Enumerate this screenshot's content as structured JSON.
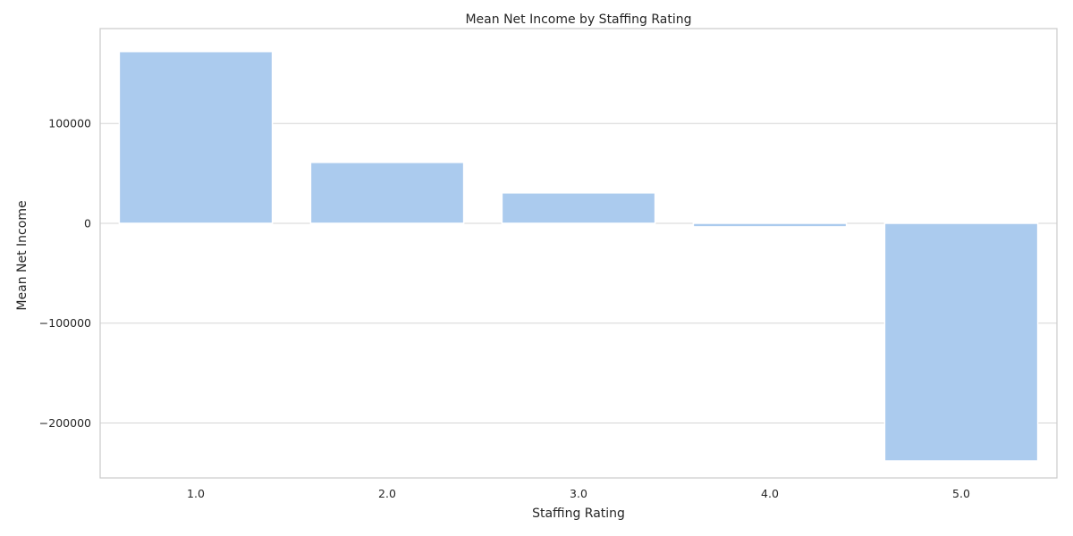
{
  "chart_data": {
    "type": "bar",
    "title": "Mean Net Income by Staffing Rating",
    "xlabel": "Staffing Rating",
    "ylabel": "Mean Net Income",
    "categories": [
      "1.0",
      "2.0",
      "3.0",
      "4.0",
      "5.0"
    ],
    "values": [
      172000,
      61000,
      30500,
      -3500,
      -238000
    ],
    "ylim": [
      -255000,
      195000
    ],
    "yticks": [
      -200000,
      -100000,
      0,
      100000
    ],
    "ytick_labels": [
      "−200000",
      "−100000",
      "0",
      "100000"
    ],
    "grid": true,
    "bar_color": "#abcbee"
  }
}
